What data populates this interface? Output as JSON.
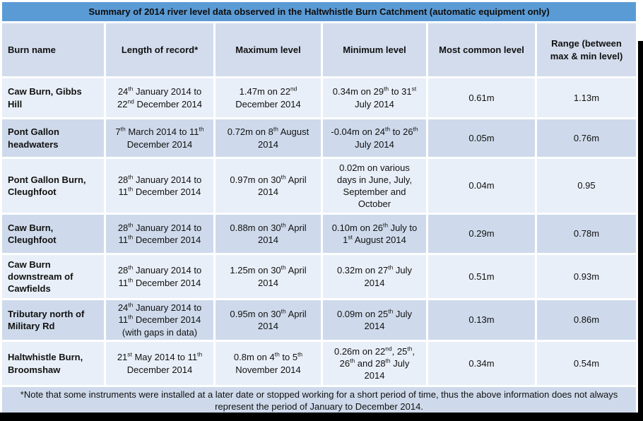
{
  "title": "Summary of 2014 river level data observed in the Haltwhistle Burn Catchment (automatic equipment only)",
  "columns": [
    "Burn name",
    "Length of record*",
    "Maximum level",
    "Minimum level",
    "Most common level",
    "Range (between max & min level)"
  ],
  "column_keys": [
    "burn_name",
    "length_of_record",
    "maximum_level",
    "minimum_level",
    "most_common_level",
    "range"
  ],
  "rows": [
    {
      "burn_name": "Caw Burn, Gibbs Hill",
      "length_of_record": "24th January 2014 to 22nd December 2014",
      "maximum_level": "1.47m on 22nd December 2014",
      "minimum_level": "0.34m on 29th to 31st July 2014",
      "most_common_level": "0.61m",
      "range": "1.13m"
    },
    {
      "burn_name": "Pont Gallon headwaters",
      "length_of_record": "7th March 2014 to 11th December 2014",
      "maximum_level": "0.72m on 8th August 2014",
      "minimum_level": "-0.04m on 24th to 26th July 2014",
      "most_common_level": "0.05m",
      "range": "0.76m"
    },
    {
      "burn_name": "Pont Gallon Burn, Cleughfoot",
      "length_of_record": "28th January 2014 to 11th December 2014",
      "maximum_level": "0.97m on 30th April 2014",
      "minimum_level": "0.02m on various days in June, July, September and October",
      "most_common_level": "0.04m",
      "range": "0.95"
    },
    {
      "burn_name": "Caw Burn, Cleughfoot",
      "length_of_record": "28th January 2014 to 11th December 2014",
      "maximum_level": "0.88m on 30th April 2014",
      "minimum_level": "0.10m on 26th July to 1st August 2014",
      "most_common_level": "0.29m",
      "range": "0.78m"
    },
    {
      "burn_name": "Caw Burn downstream of Cawfields",
      "length_of_record": "28th January 2014 to 11th December 2014",
      "maximum_level": "1.25m on 30th April 2014",
      "minimum_level": "0.32m on 27th July 2014",
      "most_common_level": "0.51m",
      "range": "0.93m"
    },
    {
      "burn_name": "Tributary north of Military Rd",
      "length_of_record": "24th January 2014 to 11th December 2014 (with gaps in data)",
      "maximum_level": "0.95m on 30th April 2014",
      "minimum_level": "0.09m on 25th July 2014",
      "most_common_level": "0.13m",
      "range": "0.86m"
    },
    {
      "burn_name": "Haltwhistle Burn, Broomshaw",
      "length_of_record": "21st May 2014 to 11th December 2014",
      "maximum_level": "0.8m on 4th to 5th November 2014",
      "minimum_level": "0.26m on 22nd, 25th, 26th and 28th July 2014",
      "most_common_level": "0.34m",
      "range": "0.54m"
    }
  ],
  "footnote": "*Note that some instruments were installed at a later date or stopped working for a short period of time, thus the above information does not always represent the period of January to December 2014.",
  "colors": {
    "title_bar": "#5B9BD5",
    "header_row": "#D2DCEC",
    "row_light": "#E9EFF8",
    "row_dark": "#CEDAEB",
    "grid": "#FFFFFF",
    "shadow": "#000000",
    "text": "#111111"
  }
}
